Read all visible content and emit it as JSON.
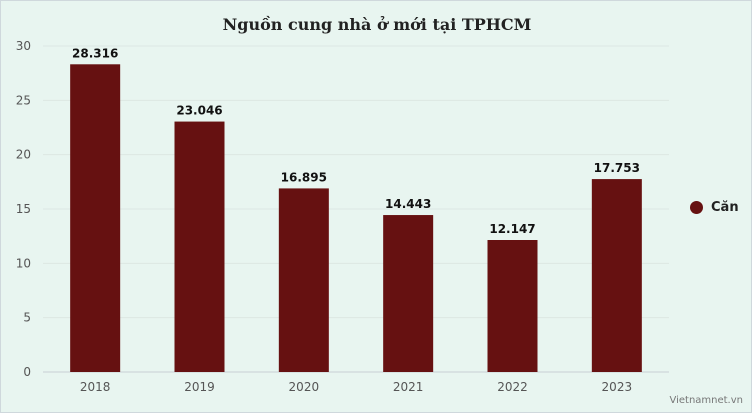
{
  "chart_data": {
    "type": "bar",
    "title": "Nguồn cung nhà ở mới tại TPHCM",
    "categories": [
      "2018",
      "2019",
      "2020",
      "2021",
      "2022",
      "2023"
    ],
    "series": [
      {
        "name": "Căn",
        "values": [
          28.316,
          23.046,
          16.895,
          14.443,
          12.147,
          17.753
        ],
        "color": "#661111"
      }
    ],
    "data_labels": [
      "28.316",
      "23.046",
      "16.895",
      "14.443",
      "12.147",
      "17.753"
    ],
    "ylim": [
      0,
      30
    ],
    "yticks": [
      0,
      5,
      10,
      15,
      20,
      25,
      30
    ],
    "grid": true,
    "legend_position": "right"
  },
  "credit": "Vietnamnet.vn"
}
